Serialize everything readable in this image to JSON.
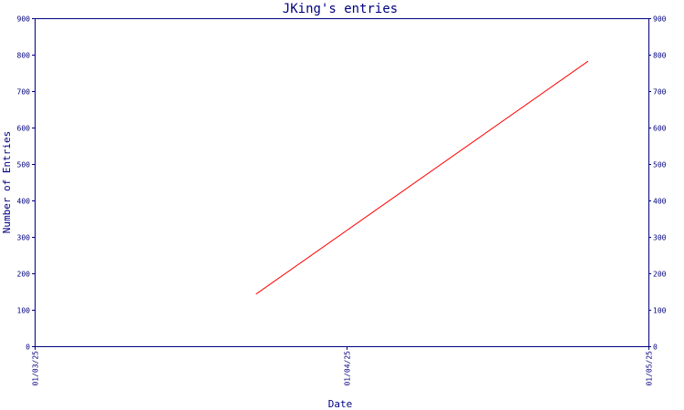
{
  "chart_data": {
    "type": "line",
    "title": "JKing's entries",
    "xlabel": "Date",
    "ylabel": "Number of Entries",
    "x_ticks": [
      "01/03/25",
      "01/04/25",
      "01/05/25"
    ],
    "ylim": [
      0,
      900
    ],
    "y_ticks": [
      "0",
      "100",
      "200",
      "300",
      "400",
      "500",
      "600",
      "700",
      "800",
      "900"
    ],
    "y_tick_values": [
      0,
      100,
      200,
      300,
      400,
      500,
      600,
      700,
      800,
      900
    ],
    "grid": false,
    "legend": "none",
    "secondary_y_axis": true,
    "series": [
      {
        "x": [
          "25-03-23",
          "25-04-25"
        ],
        "values": [
          143,
          782
        ],
        "color": "#ff0000"
      }
    ],
    "colors": {
      "axis": "#000080",
      "line": "#ff0000",
      "background": "#ffffff"
    }
  }
}
